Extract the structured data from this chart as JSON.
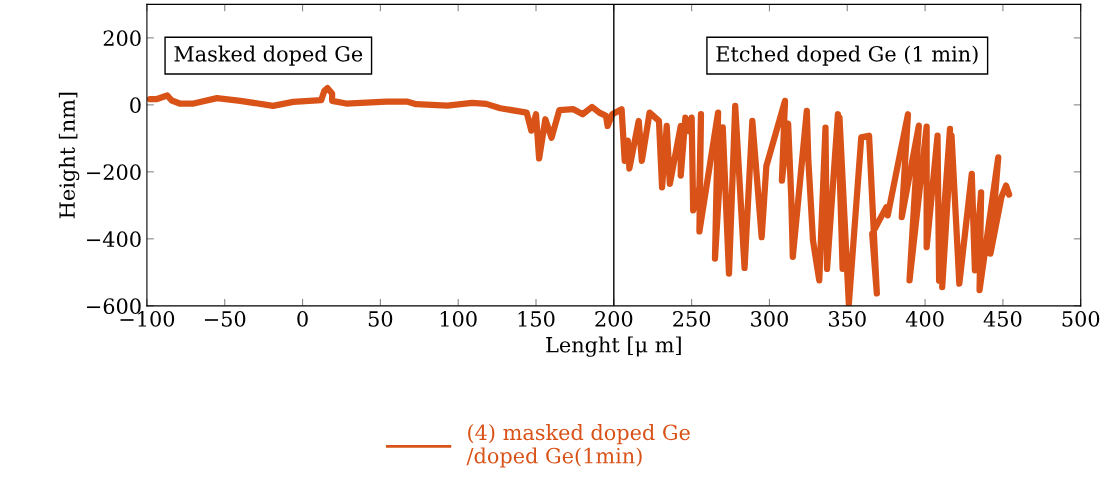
{
  "chart_data": {
    "type": "line",
    "xlabel": "Lenght [μ m]",
    "ylabel": "Height [nm]",
    "xlim": [
      -100,
      500
    ],
    "xticks": [
      -100,
      -50,
      0,
      50,
      100,
      150,
      200,
      250,
      300,
      350,
      400,
      450,
      500
    ],
    "ylim": [
      -600,
      300
    ],
    "yticks": [
      -600,
      -400,
      -200,
      0,
      200
    ],
    "grid": false,
    "legend": "bottom",
    "line_style": "solid",
    "marker": "none",
    "annotations": [
      "Masked doped Ge",
      "Etched doped Ge (1 min)"
    ],
    "ref_lines": [
      {
        "axis": "x",
        "value": 200,
        "color": "#000000"
      }
    ],
    "series": [
      {
        "name": "(4) masked doped Ge\n/doped Ge(1min)",
        "color": "#d95319",
        "x": [
          -98,
          -94,
          -87,
          -84,
          -79,
          -70,
          -55,
          -40,
          -19,
          -6,
          12,
          14,
          16,
          19,
          19,
          28,
          54,
          67,
          73,
          93,
          109,
          118,
          127,
          144,
          147,
          150,
          152,
          156,
          160,
          165,
          174,
          180,
          186,
          191,
          195,
          196,
          199,
          205,
          207,
          209,
          210,
          216,
          218,
          223,
          229,
          231,
          234,
          236,
          243,
          243,
          246,
          248,
          250,
          251,
          255,
          256,
          255,
          267,
          265,
          270,
          274,
          278,
          284,
          289,
          295,
          298,
          310,
          308,
          312,
          314,
          315,
          324,
          325,
          328,
          332,
          336,
          337,
          344,
          347,
          345,
          351,
          359,
          364,
          369,
          366,
          375,
          376,
          389,
          385,
          396,
          390,
          401,
          401,
          408,
          409,
          416,
          411,
          417,
          422,
          430,
          432,
          436,
          435,
          447,
          442,
          449,
          452,
          454
        ],
        "values": [
          17,
          17,
          28,
          13,
          4,
          4,
          20,
          12,
          -3,
          9,
          14,
          42,
          50,
          34,
          12,
          4,
          10,
          10,
          2,
          -2,
          6,
          3,
          -10,
          -23,
          -77,
          -28,
          -160,
          -43,
          -98,
          -16,
          -13,
          -28,
          -6,
          -24,
          -33,
          -63,
          -28,
          -13,
          -167,
          -107,
          -190,
          -48,
          -167,
          -23,
          -48,
          -246,
          -63,
          -236,
          -63,
          -211,
          -38,
          -78,
          -38,
          -315,
          -246,
          -28,
          -378,
          -23,
          -459,
          -67,
          -504,
          -3,
          -487,
          -48,
          -395,
          -183,
          12,
          -226,
          -56,
          -276,
          -454,
          -18,
          -167,
          -406,
          -524,
          -68,
          -490,
          -28,
          -490,
          -38,
          -595,
          -97,
          -92,
          -563,
          -385,
          -306,
          -330,
          -28,
          -335,
          -62,
          -524,
          -65,
          -425,
          -92,
          -525,
          -72,
          -544,
          -92,
          -534,
          -206,
          -494,
          -261,
          -553,
          -157,
          -444,
          -276,
          -241,
          -268
        ]
      }
    ]
  }
}
